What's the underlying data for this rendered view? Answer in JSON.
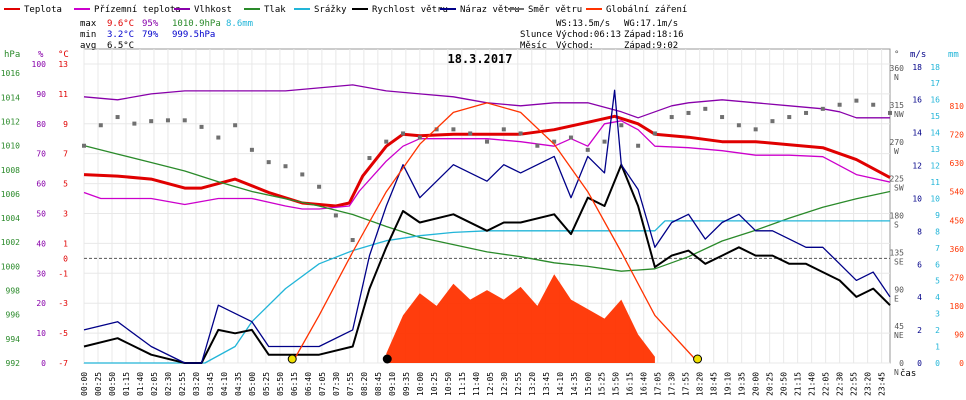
{
  "title": "18.3.2017",
  "legend": [
    {
      "label": "Teplota",
      "color": "#e00000",
      "kind": "line"
    },
    {
      "label": "Přízemní teplota",
      "color": "#cc00cc",
      "kind": "line"
    },
    {
      "label": "Vlhkost",
      "color": "#8800aa",
      "kind": "line"
    },
    {
      "label": "Tlak",
      "color": "#2a8a2a",
      "kind": "line"
    },
    {
      "label": "Srážky",
      "color": "#22b5d8",
      "kind": "line"
    },
    {
      "label": "Rychlost větru",
      "color": "#000000",
      "kind": "line"
    },
    {
      "label": "Náraz větru",
      "color": "#000088",
      "kind": "line"
    },
    {
      "label": "Směr větru",
      "color": "#707070",
      "kind": "line"
    },
    {
      "label": "Globální záření",
      "color": "#ff3300",
      "kind": "line"
    }
  ],
  "stats": {
    "max": {
      "label": "max",
      "temp": "9.6°C",
      "hum": "95%",
      "press": "1010.9hPa",
      "rain": "8.6mm"
    },
    "min": {
      "label": "min",
      "temp": "3.2°C",
      "hum": "79%",
      "press": "999.5hPa"
    },
    "avg": {
      "label": "avg",
      "temp": "6.5°C"
    }
  },
  "info": {
    "ws": "WS:13.5m/s",
    "wg": "WG:17.1m/s",
    "sun_label": "Slunce",
    "sun_rise": "Východ:06:13",
    "sun_set": "Západ:18:16",
    "moon_label": "Měsíc",
    "moon_rise": "Východ:",
    "moon_set": "Západ:9:02"
  },
  "axes": {
    "unit_hpa": "hPa",
    "unit_pct": "%",
    "unit_c": "°C",
    "unit_deg": "°",
    "unit_ms": "m/s",
    "unit_mm": "mm",
    "x_unit": "čas",
    "hpa_ticks": [
      "992",
      "994",
      "996",
      "998",
      "1000",
      "1002",
      "1004",
      "1006",
      "1008",
      "1010",
      "1012",
      "1014",
      "1016"
    ],
    "pct_ticks": [
      "0",
      "10",
      "20",
      "30",
      "40",
      "50",
      "60",
      "70",
      "80",
      "90",
      "100"
    ],
    "c_ticks": [
      "-7",
      "-5",
      "-3",
      "-1",
      "1",
      "3",
      "5",
      "7",
      "9",
      "11",
      "13"
    ],
    "c_zero": "0",
    "dir_ticks": [
      "0",
      "45",
      "90",
      "135",
      "180",
      "225",
      "270",
      "315",
      "360"
    ],
    "dir_letters": [
      "N",
      "NE",
      "E",
      "SE",
      "S",
      "SW",
      "W",
      "NW",
      "N"
    ],
    "ms_ticks": [
      "0",
      "2",
      "4",
      "6",
      "8",
      "10",
      "12",
      "14",
      "16",
      "18"
    ],
    "mm_ticks": [
      "0",
      "1",
      "2",
      "3",
      "4",
      "5",
      "6",
      "7",
      "8",
      "9",
      "10",
      "11",
      "12",
      "13",
      "14",
      "15",
      "16",
      "17",
      "18"
    ],
    "rad_ticks": [
      "0",
      "90",
      "180",
      "270",
      "360",
      "450",
      "540",
      "630",
      "720",
      "810"
    ],
    "time_ticks": [
      "00:00",
      "00:25",
      "00:50",
      "01:15",
      "01:40",
      "02:05",
      "02:30",
      "02:55",
      "03:20",
      "03:45",
      "04:10",
      "04:35",
      "05:00",
      "05:25",
      "05:50",
      "06:15",
      "06:40",
      "07:05",
      "07:30",
      "07:55",
      "08:20",
      "08:45",
      "09:10",
      "09:35",
      "10:00",
      "10:25",
      "10:50",
      "11:15",
      "11:40",
      "12:05",
      "12:30",
      "12:55",
      "13:20",
      "13:45",
      "14:10",
      "14:35",
      "15:00",
      "15:25",
      "15:50",
      "16:15",
      "16:40",
      "17:05",
      "17:30",
      "17:55",
      "18:20",
      "18:45",
      "19:10",
      "19:35",
      "20:00",
      "20:25",
      "20:50",
      "21:15",
      "21:40",
      "22:05",
      "22:30",
      "22:55",
      "23:20",
      "23:45"
    ]
  },
  "chart_data": {
    "type": "line",
    "title": "18.3.2017",
    "x_unit": "hours",
    "xlim": [
      0,
      24
    ],
    "ylim_temperature_c": [
      -7,
      14
    ],
    "ylim_humidity_pct": [
      0,
      100
    ],
    "ylim_pressure_hpa": [
      992,
      1018
    ],
    "ylim_wind_ms": [
      0,
      18
    ],
    "ylim_rain_mm": [
      0,
      18
    ],
    "ylim_radiation": [
      0,
      900
    ],
    "ylim_direction_deg": [
      0,
      360
    ],
    "series": [
      {
        "name": "Teplota",
        "color": "#e00000",
        "x": [
          0,
          1,
          2,
          3,
          3.5,
          4.5,
          5.5,
          6.5,
          7.5,
          7.9,
          8.3,
          9,
          9.5,
          10,
          11,
          12,
          13,
          14,
          15,
          15.8,
          16.5,
          17,
          18,
          19,
          20,
          21,
          22,
          23,
          24
        ],
        "y": [
          5.6,
          5.5,
          5.3,
          4.7,
          4.7,
          5.3,
          4.4,
          3.7,
          3.5,
          3.7,
          5.5,
          7.5,
          8.3,
          8.2,
          8.3,
          8.3,
          8.3,
          8.6,
          9.1,
          9.5,
          9.0,
          8.3,
          8.1,
          7.8,
          7.8,
          7.6,
          7.4,
          6.6,
          5.4
        ]
      },
      {
        "name": "Přízemní teplota",
        "color": "#cc00cc",
        "x": [
          0,
          0.5,
          1,
          2,
          3,
          4,
          5,
          6,
          6.5,
          7,
          7.9,
          8.2,
          9,
          9.5,
          10,
          11,
          12,
          13,
          14,
          14.5,
          15,
          15.5,
          16,
          16.5,
          17,
          18,
          19,
          20,
          21,
          22,
          23,
          24
        ],
        "y": [
          4.4,
          4.0,
          4.0,
          4.0,
          3.6,
          4.0,
          4.0,
          3.5,
          3.3,
          3.3,
          3.5,
          4.5,
          6.5,
          7.5,
          8.0,
          8.0,
          8.0,
          7.8,
          7.5,
          8.0,
          7.5,
          9.0,
          9.2,
          8.6,
          7.5,
          7.4,
          7.2,
          6.9,
          6.9,
          6.8,
          5.6,
          5.1
        ]
      },
      {
        "name": "Vlhkost",
        "color": "#8800aa",
        "x": [
          0,
          1,
          2,
          3,
          4,
          5,
          6,
          7,
          8,
          9,
          10,
          11,
          12,
          13,
          14,
          15,
          16,
          16.5,
          17,
          17.5,
          18,
          19,
          20,
          21,
          22,
          22.5,
          23,
          24
        ],
        "y": [
          89,
          88,
          90,
          91,
          91,
          91,
          91,
          92,
          93,
          91,
          90,
          89,
          87,
          86,
          87,
          87,
          84,
          82,
          84,
          86,
          87,
          88,
          87,
          86,
          85,
          84,
          82,
          82
        ]
      },
      {
        "name": "Tlak",
        "color": "#2a8a2a",
        "x": [
          0,
          1,
          2,
          3,
          4,
          5,
          6,
          7,
          8,
          9,
          10,
          11,
          12,
          13,
          14,
          15,
          16,
          17,
          18,
          19,
          20,
          21,
          22,
          23,
          24
        ],
        "y": [
          1010.0,
          1009.3,
          1008.6,
          1007.9,
          1007.0,
          1006.2,
          1005.6,
          1005.0,
          1004.3,
          1003.3,
          1002.4,
          1001.8,
          1001.2,
          1000.8,
          1000.3,
          1000.0,
          999.6,
          999.8,
          1000.8,
          1002.1,
          1003.0,
          1004.0,
          1004.9,
          1005.6,
          1006.2
        ]
      },
      {
        "name": "Srážky",
        "color": "#22b5d8",
        "x": [
          0,
          3.6,
          4.5,
          5,
          6,
          7,
          8,
          9,
          10,
          11,
          12,
          13,
          14,
          15,
          16,
          17,
          17.3,
          18,
          19,
          20,
          21,
          22,
          23,
          24
        ],
        "y": [
          0,
          0,
          1.0,
          2.5,
          4.5,
          6.0,
          6.8,
          7.4,
          7.7,
          7.9,
          8.0,
          8.0,
          8.0,
          8.0,
          8.0,
          8.0,
          8.6,
          8.6,
          8.6,
          8.6,
          8.6,
          8.6,
          8.6,
          8.6
        ]
      },
      {
        "name": "Rychlost větru",
        "color": "#000000",
        "x": [
          0,
          1,
          2,
          3,
          3.5,
          4,
          4.5,
          5,
          5.5,
          6,
          7,
          8,
          8.5,
          9,
          9.5,
          10,
          11,
          12,
          12.5,
          13,
          14,
          14.5,
          15,
          15.5,
          16,
          16.5,
          17,
          17.5,
          18,
          18.5,
          19,
          19.5,
          20,
          20.5,
          21,
          21.5,
          22,
          22.5,
          23,
          23.5,
          24
        ],
        "y": [
          1.0,
          1.5,
          0.5,
          0,
          0,
          2.0,
          1.8,
          2.0,
          0.5,
          0.5,
          0.5,
          1.0,
          4.5,
          7.0,
          9.2,
          8.5,
          9.0,
          8.0,
          8.5,
          8.5,
          9.0,
          7.8,
          10.0,
          9.5,
          12.0,
          9.5,
          5.8,
          6.5,
          6.8,
          6.0,
          6.5,
          7.0,
          6.5,
          6.5,
          6.0,
          6.0,
          5.5,
          5.0,
          4.0,
          4.5,
          3.5
        ]
      },
      {
        "name": "Náraz větru",
        "color": "#000088",
        "x": [
          0,
          1,
          2,
          3,
          3.5,
          4,
          4.5,
          5,
          5.5,
          6,
          7,
          8,
          8.5,
          9,
          9.5,
          10,
          10.5,
          11,
          12,
          12.5,
          13,
          14,
          14.5,
          15,
          15.5,
          15.8,
          16,
          16.5,
          17,
          17.5,
          18,
          18.5,
          19,
          19.5,
          20,
          20.5,
          21,
          21.5,
          22,
          22.5,
          23,
          23.5,
          24
        ],
        "y": [
          2.0,
          2.5,
          1.0,
          0,
          0,
          3.5,
          3.0,
          2.5,
          1.0,
          1.0,
          1.0,
          2.0,
          6.5,
          9.5,
          12.0,
          10.0,
          11.0,
          12.0,
          11.0,
          12.0,
          11.5,
          12.5,
          10.0,
          12.5,
          11.5,
          16.5,
          12.0,
          10.5,
          7.0,
          8.5,
          9.0,
          7.5,
          8.5,
          9.0,
          8.0,
          8.0,
          7.5,
          7.0,
          7.0,
          6.0,
          5.0,
          5.5,
          4.0
        ]
      },
      {
        "name": "Směr větru",
        "color": "#707070",
        "x": [
          0,
          0.5,
          1,
          1.5,
          2,
          2.5,
          3,
          3.5,
          4,
          4.5,
          5,
          5.5,
          6,
          6.5,
          7,
          7.5,
          8,
          8.5,
          9,
          9.5,
          10,
          10.5,
          11,
          11.5,
          12,
          12.5,
          13,
          13.5,
          14,
          14.5,
          15,
          15.5,
          16,
          16.5,
          17,
          17.5,
          18,
          18.5,
          19,
          19.5,
          20,
          20.5,
          21,
          21.5,
          22,
          22.5,
          23,
          23.5,
          24
        ],
        "y": [
          265,
          290,
          300,
          292,
          295,
          296,
          296,
          288,
          275,
          290,
          260,
          245,
          240,
          230,
          215,
          180,
          150,
          250,
          270,
          280,
          275,
          285,
          285,
          280,
          270,
          285,
          280,
          265,
          270,
          275,
          260,
          270,
          290,
          265,
          280,
          300,
          305,
          310,
          300,
          290,
          285,
          295,
          300,
          305,
          310,
          315,
          320,
          315,
          305
        ]
      },
      {
        "name": "Globální záření",
        "color": "#ff3300",
        "x": [
          6.2,
          7,
          8,
          9,
          10,
          11,
          12,
          13,
          14,
          15,
          16,
          17,
          18.3
        ],
        "y": [
          0,
          150,
          350,
          540,
          690,
          790,
          820,
          790,
          690,
          540,
          350,
          150,
          0
        ]
      },
      {
        "name": "Globální záření (plocha)",
        "color": "#ff3300",
        "x": [
          9,
          9.5,
          10,
          10.5,
          11,
          11.5,
          12,
          12.5,
          13,
          13.5,
          14,
          14.5,
          15,
          15.5,
          16,
          16.5,
          17
        ],
        "y": [
          30,
          150,
          220,
          180,
          250,
          200,
          230,
          200,
          240,
          180,
          280,
          200,
          170,
          140,
          200,
          90,
          20
        ]
      }
    ]
  }
}
